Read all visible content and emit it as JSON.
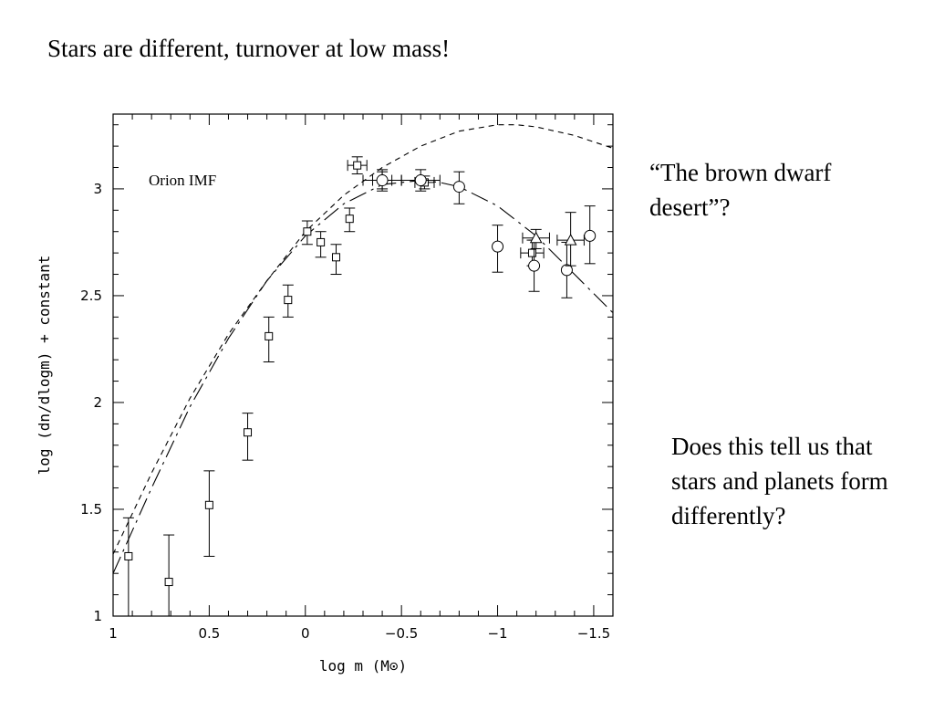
{
  "slide": {
    "title": "Stars are different, turnover at low mass!",
    "note1": "“The brown dwarf desert”?",
    "note2": "Does this tell us that stars and planets form differently?"
  },
  "chart_data": {
    "type": "scatter",
    "xlabel": "log m (M⊙)",
    "ylabel": "log (dn/dlogm) + constant",
    "xlim": [
      1,
      -1.6
    ],
    "ylim": [
      1,
      3.35
    ],
    "x_reversed": true,
    "x_ticks": [
      1,
      0.5,
      0,
      -0.5,
      -1,
      -1.5
    ],
    "x_tick_labels": [
      "1",
      "0.5",
      "0",
      "−0.5",
      "−1",
      "−1.5"
    ],
    "y_ticks": [
      1,
      1.5,
      2,
      2.5,
      3
    ],
    "y_tick_labels": [
      "1",
      "1.5",
      "2",
      "2.5",
      "3"
    ],
    "annotation": "Orion IMF",
    "grid": false,
    "series": [
      {
        "marker": "square",
        "points": [
          {
            "x": 0.92,
            "y": 1.28,
            "yerr_low": 0.28,
            "yerr_high": 0.18
          },
          {
            "x": 0.71,
            "y": 1.16,
            "yerr_low": 0.16,
            "yerr_high": 0.22
          },
          {
            "x": 0.5,
            "y": 1.52,
            "yerr_low": 0.24,
            "yerr_high": 0.16
          },
          {
            "x": 0.3,
            "y": 1.86,
            "yerr_low": 0.13,
            "yerr_high": 0.09
          },
          {
            "x": 0.19,
            "y": 2.31,
            "yerr_low": 0.12,
            "yerr_high": 0.09
          },
          {
            "x": 0.09,
            "y": 2.48,
            "yerr_low": 0.08,
            "yerr_high": 0.07
          },
          {
            "x": -0.01,
            "y": 2.8,
            "yerr_low": 0.06,
            "yerr_high": 0.05
          },
          {
            "x": -0.08,
            "y": 2.75,
            "yerr_low": 0.07,
            "yerr_high": 0.05
          },
          {
            "x": -0.16,
            "y": 2.68,
            "yerr_low": 0.08,
            "yerr_high": 0.06
          },
          {
            "x": -0.23,
            "y": 2.86,
            "yerr_low": 0.06,
            "yerr_high": 0.05
          },
          {
            "x": -0.27,
            "y": 3.11,
            "yerr_low": 0.04,
            "yerr_high": 0.04,
            "xerr": 0.05
          },
          {
            "x": -0.4,
            "y": 3.04,
            "yerr_low": 0.04,
            "yerr_high": 0.04,
            "xerr": 0.05
          },
          {
            "x": -0.62,
            "y": 3.03,
            "yerr_low": 0.03,
            "yerr_high": 0.03,
            "xerr": 0.05
          },
          {
            "x": -1.18,
            "y": 2.7,
            "yerr_low": 0.06,
            "yerr_high": 0.06,
            "xerr": 0.06
          }
        ]
      },
      {
        "marker": "circle",
        "points": [
          {
            "x": -0.4,
            "y": 3.04,
            "yerr_low": 0.05,
            "yerr_high": 0.05,
            "xerr": 0.1
          },
          {
            "x": -0.6,
            "y": 3.04,
            "yerr_low": 0.05,
            "yerr_high": 0.05,
            "xerr": 0.1
          },
          {
            "x": -0.8,
            "y": 3.01,
            "yerr_low": 0.08,
            "yerr_high": 0.07
          },
          {
            "x": -1.0,
            "y": 2.73,
            "yerr_low": 0.12,
            "yerr_high": 0.1
          },
          {
            "x": -1.19,
            "y": 2.64,
            "yerr_low": 0.12,
            "yerr_high": 0.12
          },
          {
            "x": -1.36,
            "y": 2.62,
            "yerr_low": 0.13,
            "yerr_high": 0.13
          },
          {
            "x": -1.48,
            "y": 2.78,
            "yerr_low": 0.13,
            "yerr_high": 0.14
          }
        ]
      },
      {
        "marker": "triangle",
        "points": [
          {
            "x": -1.2,
            "y": 2.77,
            "yerr_low": 0.05,
            "yerr_high": 0.04,
            "xerr": 0.07
          },
          {
            "x": -1.38,
            "y": 2.76,
            "yerr_low": 0.12,
            "yerr_high": 0.13,
            "xerr": 0.07
          }
        ]
      }
    ],
    "curves": [
      {
        "style": "short-dash",
        "points": [
          [
            1.0,
            1.29
          ],
          [
            0.8,
            1.67
          ],
          [
            0.6,
            2.02
          ],
          [
            0.4,
            2.32
          ],
          [
            0.2,
            2.57
          ],
          [
            0.0,
            2.8
          ],
          [
            -0.2,
            2.97
          ],
          [
            -0.4,
            3.1
          ],
          [
            -0.6,
            3.2
          ],
          [
            -0.8,
            3.27
          ],
          [
            -1.0,
            3.3
          ],
          [
            -1.1,
            3.3
          ],
          [
            -1.2,
            3.29
          ],
          [
            -1.4,
            3.25
          ],
          [
            -1.6,
            3.19
          ]
        ]
      },
      {
        "style": "long-dash",
        "points": [
          [
            1.0,
            1.2
          ],
          [
            0.8,
            1.6
          ],
          [
            0.6,
            1.98
          ],
          [
            0.4,
            2.3
          ],
          [
            0.2,
            2.57
          ],
          [
            0.0,
            2.78
          ],
          [
            -0.2,
            2.93
          ],
          [
            -0.4,
            3.02
          ],
          [
            -0.6,
            3.04
          ],
          [
            -0.7,
            3.03
          ],
          [
            -0.8,
            3.01
          ],
          [
            -1.0,
            2.92
          ],
          [
            -1.2,
            2.78
          ],
          [
            -1.4,
            2.6
          ],
          [
            -1.6,
            2.42
          ]
        ]
      }
    ]
  }
}
